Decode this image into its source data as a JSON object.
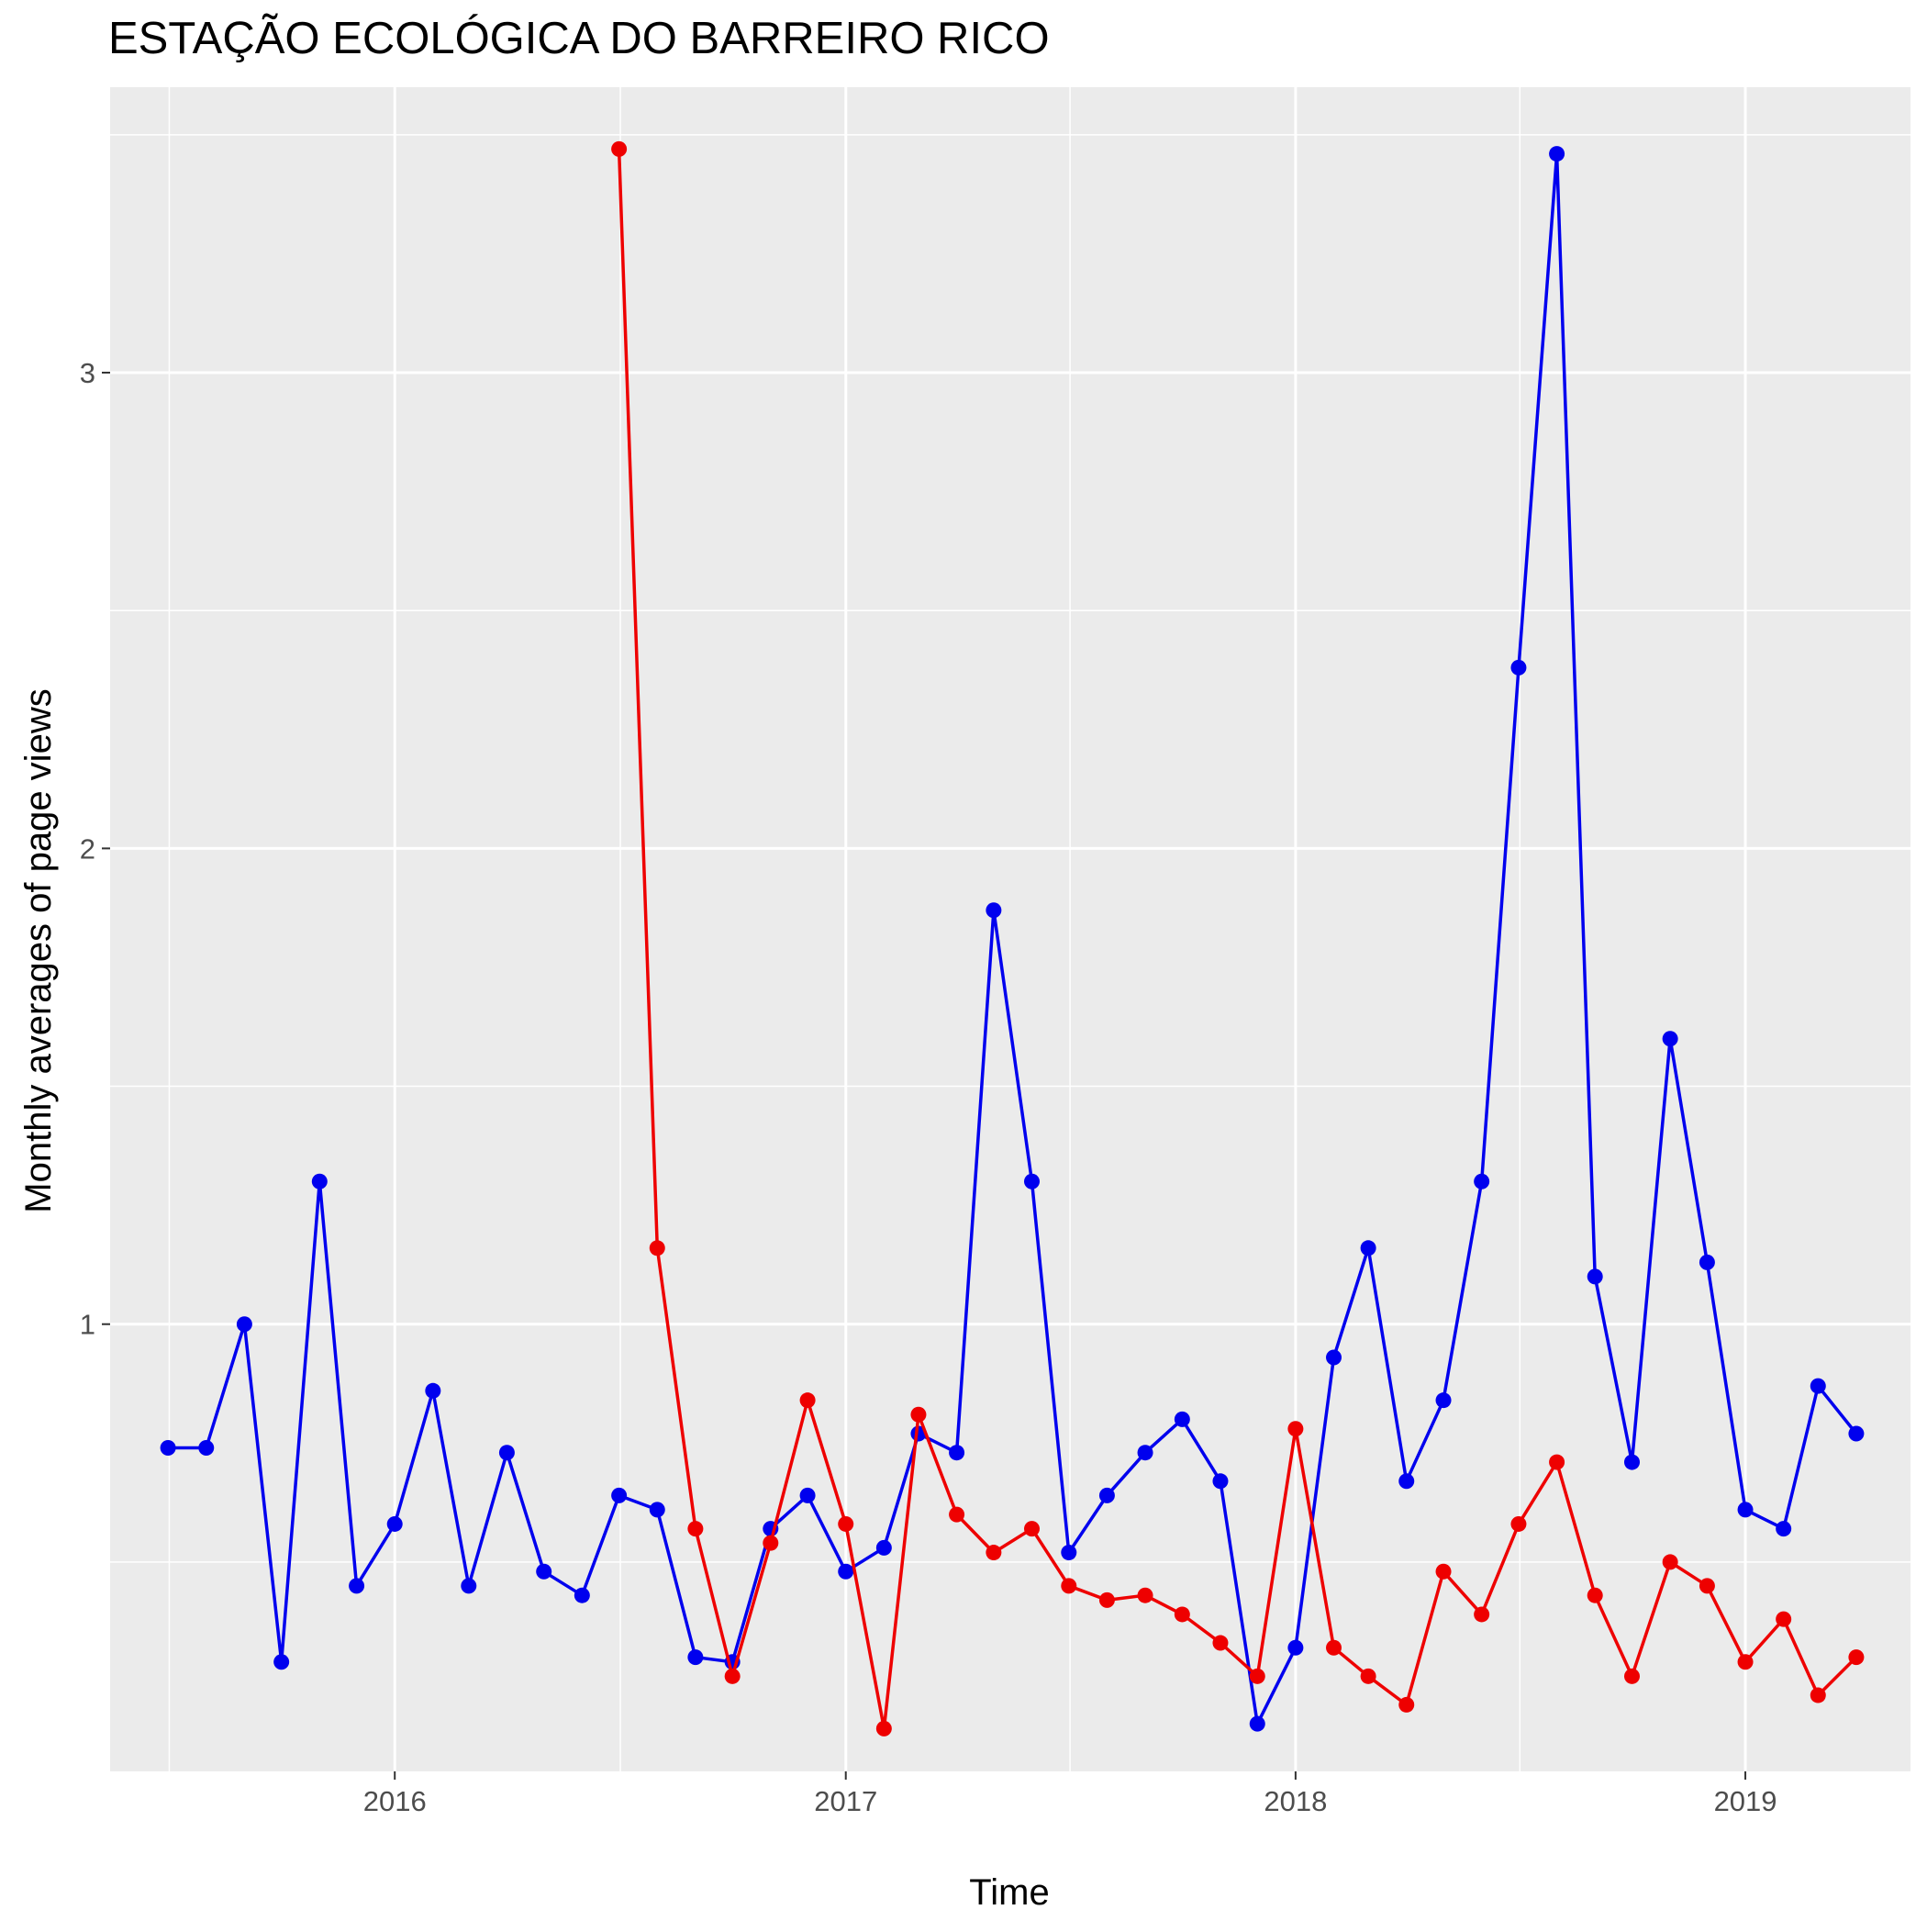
{
  "chart_data": {
    "type": "line",
    "title": "ESTAÇÃO ECOLÓGICA DO BARREIRO RICO",
    "xlabel": "Time",
    "ylabel": "Monthly averages of page views",
    "xlim": [
      "2015-05-15",
      "2019-05-15"
    ],
    "ylim": [
      0.06,
      3.6
    ],
    "x_ticks": [
      "2016",
      "2017",
      "2018",
      "2019"
    ],
    "x_tick_dates": [
      "2016-01-01",
      "2017-01-01",
      "2018-01-01",
      "2019-01-01"
    ],
    "y_ticks": [
      1,
      2,
      3
    ],
    "y_minor": [
      0.5,
      1.5,
      2.5,
      3.5
    ],
    "grid": true,
    "legend": "none",
    "background_color": "#ebebeb",
    "grid_color": "#ffffff",
    "series": [
      {
        "color": "#0000ee",
        "dates": [
          "2015-07-01",
          "2015-08-01",
          "2015-09-01",
          "2015-10-01",
          "2015-11-01",
          "2015-12-01",
          "2016-01-01",
          "2016-02-01",
          "2016-03-01",
          "2016-04-01",
          "2016-05-01",
          "2016-06-01",
          "2016-07-01",
          "2016-08-01",
          "2016-09-01",
          "2016-10-01",
          "2016-11-01",
          "2016-12-01",
          "2017-01-01",
          "2017-02-01",
          "2017-03-01",
          "2017-04-01",
          "2017-05-01",
          "2017-06-01",
          "2017-07-01",
          "2017-08-01",
          "2017-09-01",
          "2017-10-01",
          "2017-11-01",
          "2017-12-01",
          "2018-01-01",
          "2018-02-01",
          "2018-03-01",
          "2018-04-01",
          "2018-05-01",
          "2018-06-01",
          "2018-07-01",
          "2018-08-01",
          "2018-09-01",
          "2018-10-01",
          "2018-11-01",
          "2018-12-01",
          "2019-01-01",
          "2019-02-01",
          "2019-03-01",
          "2019-04-01"
        ],
        "values": [
          0.74,
          0.74,
          1.0,
          0.29,
          1.3,
          0.45,
          0.58,
          0.86,
          0.45,
          0.73,
          0.48,
          0.43,
          0.64,
          0.61,
          0.3,
          0.29,
          0.57,
          0.64,
          0.48,
          0.53,
          0.77,
          0.73,
          1.87,
          1.3,
          0.52,
          0.64,
          0.73,
          0.8,
          0.67,
          0.16,
          0.32,
          0.93,
          1.16,
          0.67,
          0.84,
          1.3,
          2.38,
          3.46,
          1.1,
          0.71,
          1.6,
          1.13,
          0.61,
          0.57,
          0.87,
          0.77
        ]
      },
      {
        "color": "#ee0000",
        "dates": [
          "2016-07-01",
          "2016-08-01",
          "2016-09-01",
          "2016-10-01",
          "2016-11-01",
          "2016-12-01",
          "2017-01-01",
          "2017-02-01",
          "2017-03-01",
          "2017-04-01",
          "2017-05-01",
          "2017-06-01",
          "2017-07-01",
          "2017-08-01",
          "2017-09-01",
          "2017-10-01",
          "2017-11-01",
          "2017-12-01",
          "2018-01-01",
          "2018-02-01",
          "2018-03-01",
          "2018-04-01",
          "2018-05-01",
          "2018-06-01",
          "2018-07-01",
          "2018-08-01",
          "2018-09-01",
          "2018-10-01",
          "2018-11-01",
          "2018-12-01",
          "2019-01-01",
          "2019-02-01",
          "2019-03-01",
          "2019-04-01"
        ],
        "values": [
          3.47,
          1.16,
          0.57,
          0.26,
          0.54,
          0.84,
          0.58,
          0.15,
          0.81,
          0.6,
          0.52,
          0.57,
          0.45,
          0.42,
          0.43,
          0.39,
          0.33,
          0.26,
          0.78,
          0.32,
          0.26,
          0.2,
          0.48,
          0.39,
          0.58,
          0.71,
          0.43,
          0.26,
          0.5,
          0.45,
          0.29,
          0.38,
          0.22,
          0.3
        ]
      }
    ]
  }
}
